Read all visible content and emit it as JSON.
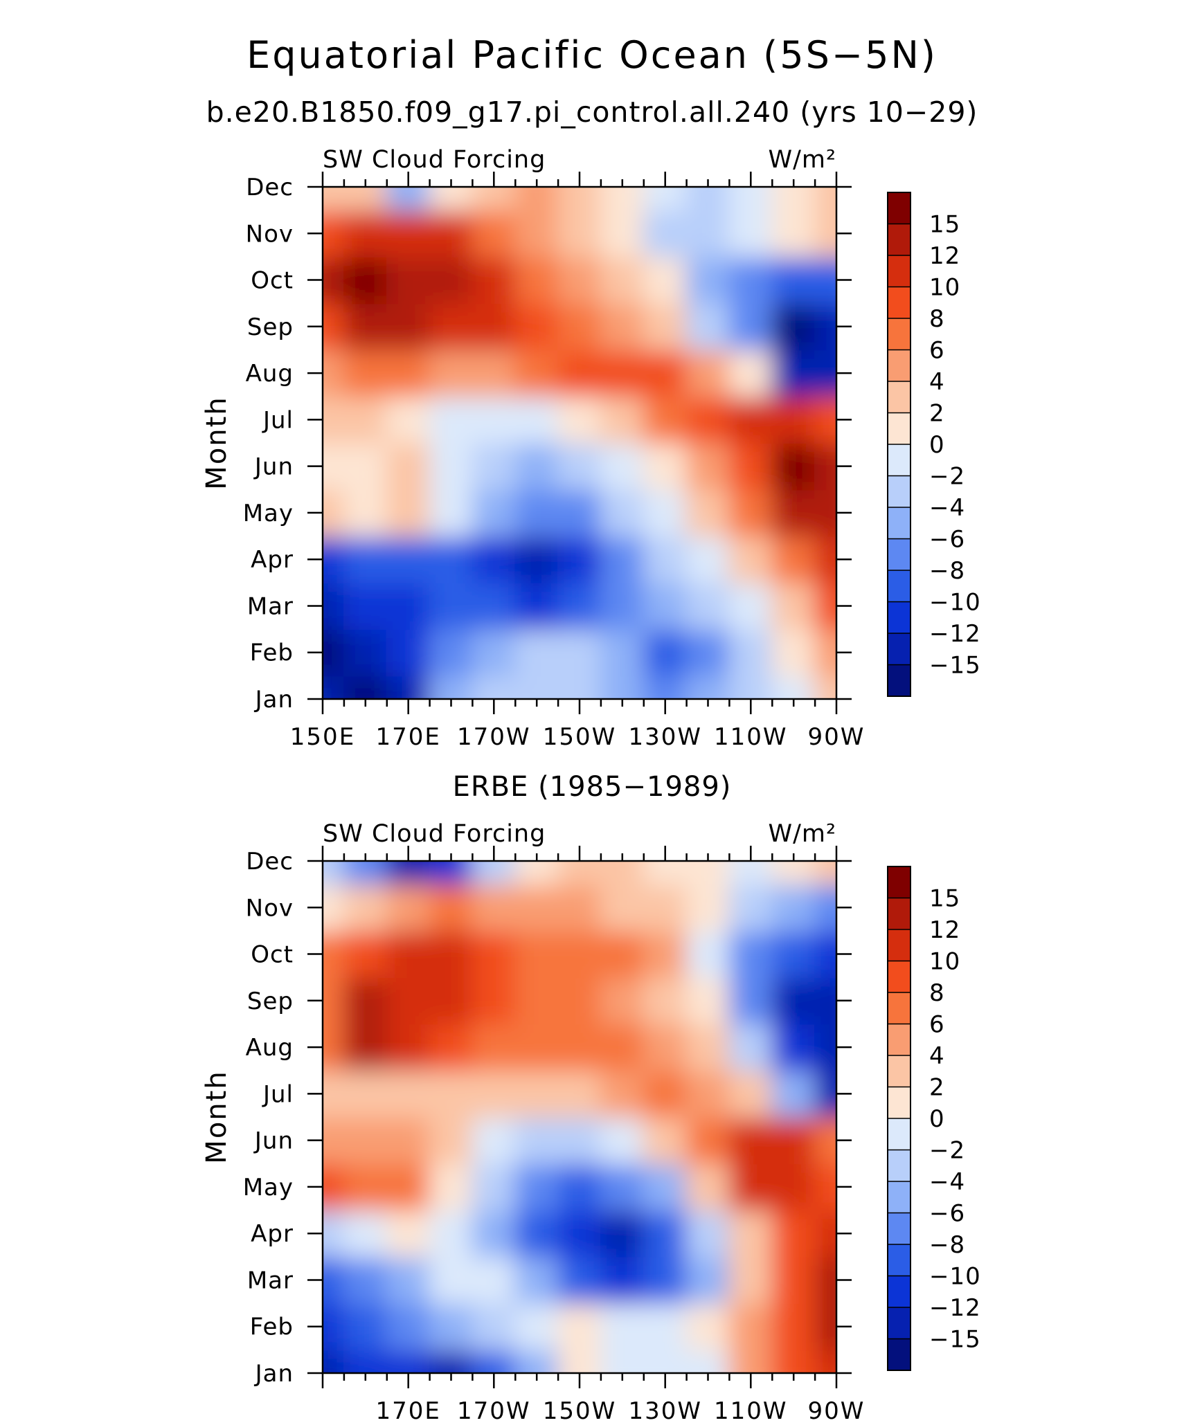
{
  "title": "Equatorial Pacific Ocean (5S−5N)",
  "subtitle": "b.e20.B1850.f09_g17.pi_control.all.240 (yrs 10−29)",
  "colorbar": {
    "labels": [
      "15",
      "12",
      "10",
      "8",
      "6",
      "4",
      "2",
      "0",
      "−2",
      "−4",
      "−6",
      "−8",
      "−10",
      "−12",
      "−15"
    ],
    "colors": [
      "#7f0000",
      "#b01a0a",
      "#d52e0e",
      "#f24d1d",
      "#f7743c",
      "#f99d72",
      "#fbc5a5",
      "#fde5d3",
      "#dce9fb",
      "#b8cffa",
      "#8eb1f8",
      "#5d88f2",
      "#2b5de6",
      "#0c34d6",
      "#0621b0",
      "#03107d"
    ]
  },
  "chart_data": [
    {
      "type": "heatmap",
      "title": "",
      "left_label": "SW Cloud Forcing",
      "right_label": "W/m²",
      "ylabel": "Month",
      "xlabel": "",
      "x_tick_labels": [
        "150E",
        "170E",
        "170W",
        "150W",
        "130W",
        "110W",
        "90W"
      ],
      "y_tick_labels": [
        "Jan",
        "Feb",
        "Mar",
        "Apr",
        "May",
        "Jun",
        "Jul",
        "Aug",
        "Sep",
        "Oct",
        "Nov",
        "Dec"
      ],
      "x_range_deg_east": [
        150,
        270
      ],
      "x": [
        150,
        160,
        170,
        180,
        190,
        200,
        210,
        220,
        230,
        240,
        250,
        260,
        270
      ],
      "y": [
        "Jan",
        "Feb",
        "Mar",
        "Apr",
        "May",
        "Jun",
        "Jul",
        "Aug",
        "Sep",
        "Oct",
        "Nov",
        "Dec"
      ],
      "values": [
        [
          -14,
          -16,
          -14,
          -6,
          -4,
          -3,
          -3,
          -5,
          -8,
          -6,
          -4,
          -1,
          3
        ],
        [
          -16,
          -13,
          -12,
          -7,
          -5,
          -4,
          -4,
          -6,
          -10,
          -7,
          -4,
          0,
          5
        ],
        [
          -13,
          -12,
          -11,
          -9,
          -10,
          -11,
          -10,
          -8,
          -6,
          -3,
          -1,
          3,
          8
        ],
        [
          -11,
          -10,
          -10,
          -9,
          -12,
          -13,
          -12,
          -8,
          -4,
          -1,
          2,
          6,
          10
        ],
        [
          2,
          1,
          3,
          -1,
          -6,
          -8,
          -7,
          -4,
          -1,
          2,
          6,
          12,
          13
        ],
        [
          1,
          1,
          2,
          -2,
          -4,
          -5,
          -4,
          -2,
          1,
          4,
          9,
          15,
          13
        ],
        [
          2,
          2,
          1,
          -1,
          -2,
          -1,
          1,
          3,
          6,
          9,
          11,
          10,
          9
        ],
        [
          5,
          6,
          6,
          5,
          5,
          6,
          8,
          9,
          8,
          5,
          1,
          -15,
          -15
        ],
        [
          8,
          13,
          12,
          11,
          10,
          8,
          7,
          5,
          2,
          -4,
          -8,
          -16,
          -15
        ],
        [
          14,
          15,
          14,
          13,
          10,
          7,
          5,
          3,
          0,
          -5,
          -8,
          -10,
          -10
        ],
        [
          9,
          11,
          11,
          10,
          7,
          5,
          2,
          0,
          -3,
          -4,
          -2,
          1,
          3
        ],
        [
          3,
          2,
          -6,
          1,
          3,
          4,
          3,
          0,
          -2,
          -3,
          -1,
          0,
          2
        ]
      ],
      "levels": [
        -15,
        -12,
        -10,
        -8,
        -6,
        -4,
        -2,
        0,
        2,
        4,
        6,
        8,
        10,
        12,
        15
      ]
    },
    {
      "type": "heatmap",
      "title": "ERBE (1985−1989)",
      "left_label": "SW Cloud Forcing",
      "right_label": "W/m²",
      "ylabel": "Month",
      "xlabel": "",
      "x_tick_labels": [
        "",
        "170E",
        "170W",
        "150W",
        "130W",
        "110W",
        "90W"
      ],
      "y_tick_labels": [
        "Jan",
        "Feb",
        "Mar",
        "Apr",
        "May",
        "Jun",
        "Jul",
        "Aug",
        "Sep",
        "Oct",
        "Nov",
        "Dec"
      ],
      "x_range_deg_east": [
        150,
        270
      ],
      "x": [
        150,
        160,
        170,
        180,
        190,
        200,
        210,
        220,
        230,
        240,
        250,
        260,
        270
      ],
      "y": [
        "Jan",
        "Feb",
        "Mar",
        "Apr",
        "May",
        "Jun",
        "Jul",
        "Aug",
        "Sep",
        "Oct",
        "Nov",
        "Dec"
      ],
      "values": [
        [
          -13,
          -12,
          -11,
          -13,
          -10,
          -6,
          0,
          -1,
          -2,
          -1,
          4,
          8,
          10
        ],
        [
          -12,
          -10,
          -8,
          -6,
          -3,
          -1,
          1,
          -1,
          -2,
          0,
          4,
          9,
          12
        ],
        [
          -9,
          -7,
          -5,
          -2,
          -1,
          -6,
          -10,
          -11,
          -9,
          -5,
          2,
          8,
          13
        ],
        [
          -4,
          -1,
          1,
          -2,
          -6,
          -10,
          -12,
          -13,
          -10,
          -4,
          3,
          8,
          11
        ],
        [
          8,
          7,
          6,
          1,
          -3,
          -8,
          -9,
          -8,
          -5,
          2,
          10,
          11,
          9
        ],
        [
          5,
          4,
          4,
          2,
          -1,
          -4,
          -3,
          -1,
          3,
          7,
          11,
          10,
          6
        ],
        [
          3,
          2,
          3,
          2,
          3,
          2,
          3,
          5,
          6,
          5,
          2,
          -6,
          -14
        ],
        [
          6,
          12,
          11,
          9,
          7,
          6,
          6,
          7,
          5,
          2,
          -4,
          -11,
          -14
        ],
        [
          7,
          12,
          11,
          10,
          9,
          7,
          6,
          5,
          3,
          0,
          -8,
          -14,
          -15
        ],
        [
          7,
          9,
          10,
          10,
          8,
          6,
          6,
          6,
          4,
          -1,
          -7,
          -10,
          -11
        ],
        [
          1,
          3,
          5,
          6,
          5,
          4,
          4,
          3,
          2,
          1,
          -3,
          -6,
          -7
        ],
        [
          -3,
          -8,
          -13,
          -12,
          -3,
          1,
          2,
          2,
          1,
          0,
          -2,
          0,
          2
        ]
      ],
      "levels": [
        -15,
        -12,
        -10,
        -8,
        -6,
        -4,
        -2,
        0,
        2,
        4,
        6,
        8,
        10,
        12,
        15
      ]
    }
  ]
}
